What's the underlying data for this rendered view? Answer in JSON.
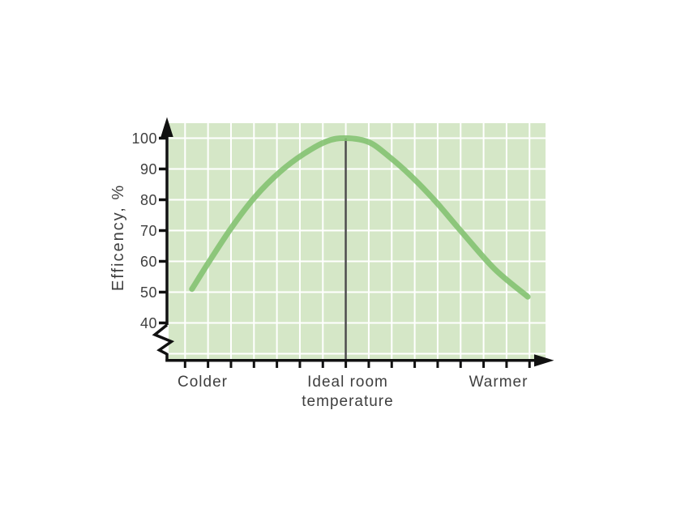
{
  "page": {
    "background": "#ffffff"
  },
  "chart_data": {
    "type": "line",
    "title": "",
    "ylabel": "Efficency, %",
    "xlabel": "",
    "y_ticks": [
      100,
      90,
      80,
      70,
      60,
      50,
      40
    ],
    "y_axis_break_below": 40,
    "ylim_visible": [
      40,
      100
    ],
    "grid": {
      "visible": true,
      "v_line_count": 16,
      "h_line_count": 8,
      "legend": "none"
    },
    "x_labels": [
      {
        "lines": [
          "Colder"
        ],
        "pos": 0.09
      },
      {
        "lines": [
          "Ideal room",
          "temperature"
        ],
        "pos": 0.47
      },
      {
        "lines": [
          "Warmer"
        ],
        "pos": 0.878
      }
    ],
    "series": [
      {
        "name": "efficiency vs room temperature",
        "points": [
          [
            0.062,
            51
          ],
          [
            0.108,
            60
          ],
          [
            0.17,
            71.5
          ],
          [
            0.23,
            81
          ],
          [
            0.295,
            89
          ],
          [
            0.36,
            95
          ],
          [
            0.42,
            99
          ],
          [
            0.47,
            100
          ],
          [
            0.531,
            98.7
          ],
          [
            0.585,
            94
          ],
          [
            0.645,
            87.5
          ],
          [
            0.708,
            79.5
          ],
          [
            0.778,
            69.5
          ],
          [
            0.865,
            57.5
          ],
          [
            0.953,
            48.5
          ]
        ]
      }
    ],
    "peak_marker": {
      "x": 0.47,
      "value": 100,
      "label": "Ideal room temperature"
    },
    "colors": {
      "curve": "#82c170",
      "plot_bg": "#d5e7c7",
      "grid": "#ffffff",
      "axis": "#111111",
      "marker": "#4d4d4d",
      "text": "#3f3f3f"
    }
  }
}
